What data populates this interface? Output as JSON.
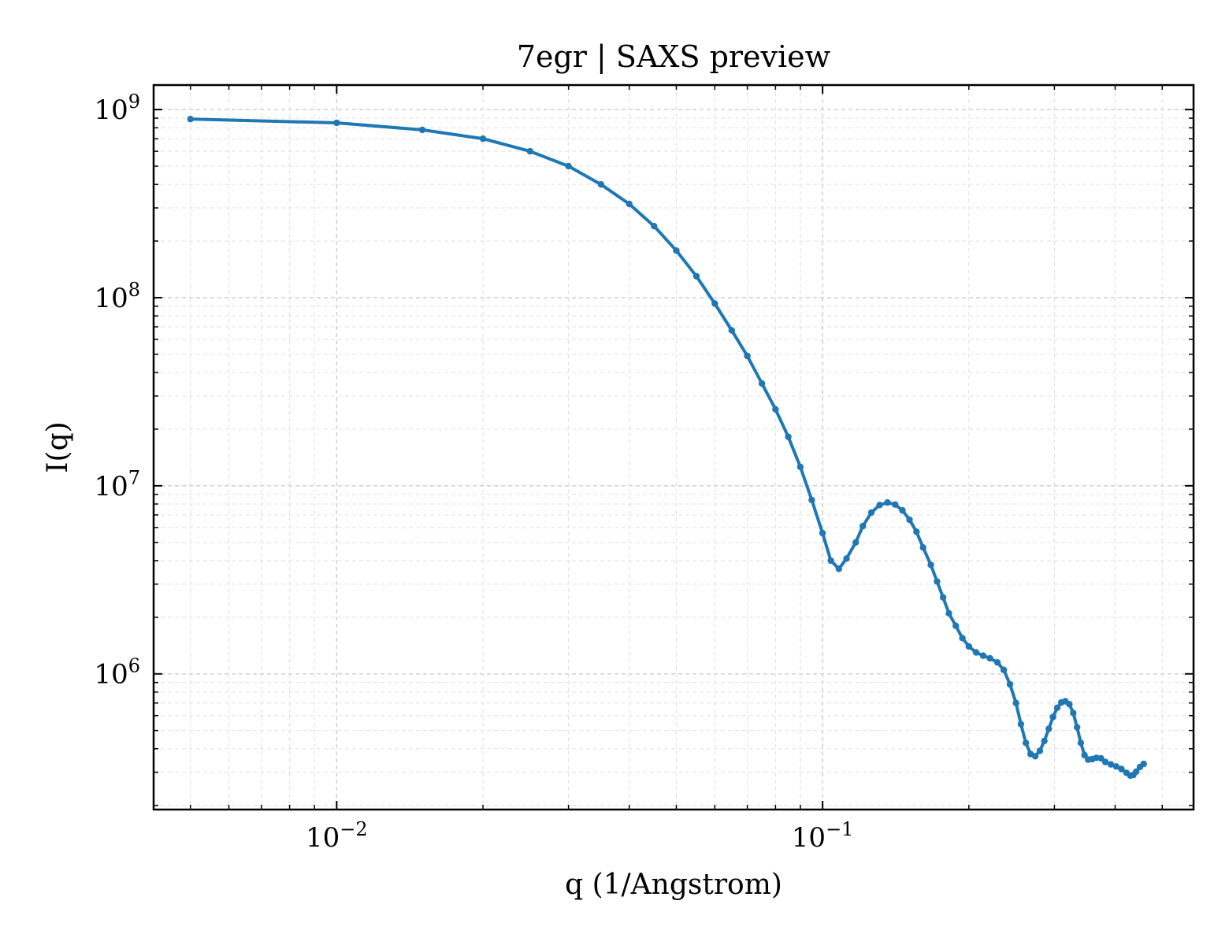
{
  "chart_data": {
    "type": "line",
    "title": "7egr | SAXS preview",
    "xlabel": "q (1/Angstrom)",
    "ylabel": "I(q)",
    "xscale": "log",
    "yscale": "log",
    "xlim": [
      0.0042,
      0.58
    ],
    "ylim": [
      190000,
      1350000000
    ],
    "grid": true,
    "x_ticks": [
      {
        "value": 0.01,
        "base": "10",
        "exp": "−2"
      },
      {
        "value": 0.1,
        "base": "10",
        "exp": "−1"
      }
    ],
    "y_ticks": [
      {
        "value": 1000000,
        "base": "10",
        "exp": "6"
      },
      {
        "value": 10000000,
        "base": "10",
        "exp": "7"
      },
      {
        "value": 100000000,
        "base": "10",
        "exp": "8"
      },
      {
        "value": 1000000000,
        "base": "10",
        "exp": "9"
      }
    ],
    "series": [
      {
        "color": "#1f77b4",
        "points": [
          [
            0.005,
            890000000
          ],
          [
            0.01,
            850000000
          ],
          [
            0.015,
            780000000
          ],
          [
            0.02,
            700000000
          ],
          [
            0.025,
            600000000
          ],
          [
            0.03,
            500000000
          ],
          [
            0.035,
            400000000
          ],
          [
            0.04,
            315000000
          ],
          [
            0.045,
            240000000
          ],
          [
            0.05,
            178000000
          ],
          [
            0.055,
            130000000
          ],
          [
            0.06,
            93000000
          ],
          [
            0.065,
            67000000
          ],
          [
            0.07,
            49000000
          ],
          [
            0.075,
            35000000
          ],
          [
            0.08,
            25500000
          ],
          [
            0.085,
            18200000
          ],
          [
            0.09,
            12600000
          ],
          [
            0.095,
            8400000
          ],
          [
            0.1,
            5600000
          ],
          [
            0.104,
            4000000
          ],
          [
            0.108,
            3620000
          ],
          [
            0.112,
            4100000
          ],
          [
            0.117,
            5000000
          ],
          [
            0.121,
            6100000
          ],
          [
            0.126,
            7200000
          ],
          [
            0.131,
            7900000
          ],
          [
            0.136,
            8150000
          ],
          [
            0.141,
            7950000
          ],
          [
            0.146,
            7400000
          ],
          [
            0.151,
            6600000
          ],
          [
            0.156,
            5700000
          ],
          [
            0.161,
            4700000
          ],
          [
            0.167,
            3800000
          ],
          [
            0.172,
            3100000
          ],
          [
            0.177,
            2550000
          ],
          [
            0.182,
            2100000
          ],
          [
            0.188,
            1800000
          ],
          [
            0.194,
            1550000
          ],
          [
            0.2,
            1400000
          ],
          [
            0.207,
            1300000
          ],
          [
            0.214,
            1250000
          ],
          [
            0.221,
            1210000
          ],
          [
            0.229,
            1150000
          ],
          [
            0.236,
            1050000
          ],
          [
            0.243,
            880000
          ],
          [
            0.25,
            700000
          ],
          [
            0.256,
            540000
          ],
          [
            0.262,
            430000
          ],
          [
            0.268,
            375000
          ],
          [
            0.274,
            365000
          ],
          [
            0.28,
            390000
          ],
          [
            0.286,
            440000
          ],
          [
            0.292,
            510000
          ],
          [
            0.298,
            590000
          ],
          [
            0.304,
            660000
          ],
          [
            0.31,
            705000
          ],
          [
            0.316,
            715000
          ],
          [
            0.322,
            690000
          ],
          [
            0.328,
            620000
          ],
          [
            0.334,
            520000
          ],
          [
            0.34,
            430000
          ],
          [
            0.346,
            370000
          ],
          [
            0.352,
            350000
          ],
          [
            0.359,
            352000
          ],
          [
            0.366,
            358000
          ],
          [
            0.374,
            356000
          ],
          [
            0.382,
            340000
          ],
          [
            0.392,
            330000
          ],
          [
            0.402,
            322000
          ],
          [
            0.412,
            312000
          ],
          [
            0.422,
            298000
          ],
          [
            0.43,
            288000
          ],
          [
            0.436,
            290000
          ],
          [
            0.442,
            302000
          ],
          [
            0.45,
            320000
          ],
          [
            0.458,
            332000
          ]
        ]
      }
    ]
  }
}
